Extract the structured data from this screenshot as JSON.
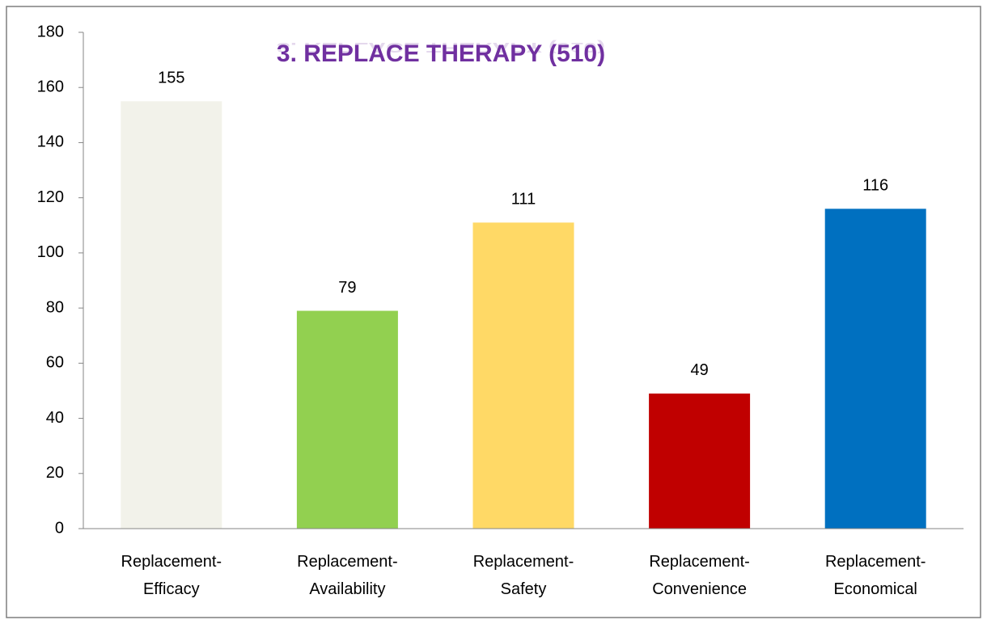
{
  "chart_data": {
    "type": "bar",
    "title": "3. REPLACE THERAPY (510)",
    "categories": [
      [
        "Replacement-",
        "Efficacy"
      ],
      [
        "Replacement-",
        "Availability"
      ],
      [
        "Replacement-",
        "Safety"
      ],
      [
        "Replacement-",
        "Convenience"
      ],
      [
        "Replacement-",
        "Economical"
      ]
    ],
    "values": [
      155,
      79,
      111,
      49,
      116
    ],
    "colors": [
      "#f2f2ea",
      "#92d050",
      "#ffd966",
      "#c00000",
      "#0070c0"
    ],
    "ylim": [
      0,
      180
    ],
    "yticks": [
      0,
      20,
      40,
      60,
      80,
      100,
      120,
      140,
      160,
      180
    ],
    "grid": false
  }
}
